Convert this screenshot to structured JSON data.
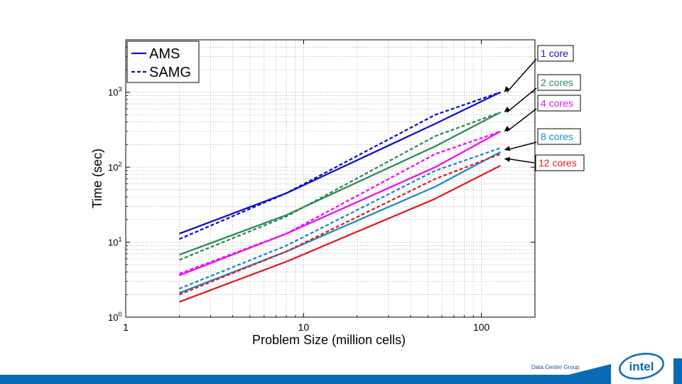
{
  "chart_data": {
    "type": "line",
    "x_scale": "log",
    "y_scale": "log",
    "xlim": [
      1,
      200
    ],
    "ylim": [
      1,
      5000
    ],
    "xlabel": "Problem Size (million cells)",
    "ylabel": "Time (sec)",
    "x_ticks": [
      1,
      10,
      100
    ],
    "x_tick_labels": [
      "1",
      "10",
      "100"
    ],
    "y_ticks": [
      1,
      10,
      100,
      1000
    ],
    "y_tick_labels": [
      {
        "base": "10",
        "exp": "0"
      },
      {
        "base": "10",
        "exp": "1"
      },
      {
        "base": "10",
        "exp": "2"
      },
      {
        "base": "10",
        "exp": "3"
      }
    ],
    "grid": true,
    "legend": {
      "position": "top-left",
      "entries": [
        {
          "label": "AMS",
          "style": "solid"
        },
        {
          "label": "SAMG",
          "style": "dashed"
        }
      ]
    },
    "series": [
      {
        "name": "AMS 1 core",
        "method": "AMS",
        "cores": "1 core",
        "color": "#1010cc",
        "style": "solid",
        "x": [
          2,
          8,
          55,
          128
        ],
        "y": [
          13,
          45,
          380,
          1000
        ]
      },
      {
        "name": "SAMG 1 core",
        "method": "SAMG",
        "cores": "1 core",
        "color": "#1010cc",
        "style": "dashed",
        "x": [
          2,
          8,
          55,
          128
        ],
        "y": [
          11,
          45,
          500,
          1000
        ]
      },
      {
        "name": "AMS 2 cores",
        "method": "AMS",
        "cores": "2 cores",
        "color": "#2e8b57",
        "style": "solid",
        "x": [
          2,
          8,
          55,
          128
        ],
        "y": [
          6.8,
          23,
          190,
          540
        ]
      },
      {
        "name": "SAMG 2 cores",
        "method": "SAMG",
        "cores": "2 cores",
        "color": "#2e8b57",
        "style": "dashed",
        "x": [
          2,
          8,
          55,
          128
        ],
        "y": [
          5.8,
          22,
          260,
          540
        ]
      },
      {
        "name": "AMS 4 cores",
        "method": "AMS",
        "cores": "4 cores",
        "color": "#ee10ee",
        "style": "solid",
        "x": [
          2,
          8,
          55,
          128
        ],
        "y": [
          3.6,
          13,
          100,
          300
        ]
      },
      {
        "name": "SAMG 4 cores",
        "method": "SAMG",
        "cores": "4 cores",
        "color": "#ee10ee",
        "style": "dashed",
        "x": [
          2,
          8,
          55,
          128
        ],
        "y": [
          3.8,
          13,
          150,
          300
        ]
      },
      {
        "name": "AMS 8 cores",
        "method": "AMS",
        "cores": "8 cores",
        "color": "#1e88c4",
        "style": "solid",
        "x": [
          2,
          8,
          55,
          128
        ],
        "y": [
          2.1,
          7.5,
          55,
          160
        ]
      },
      {
        "name": "SAMG 8 cores",
        "method": "SAMG",
        "cores": "8 cores",
        "color": "#1e88c4",
        "style": "dashed",
        "x": [
          2,
          8,
          55,
          128
        ],
        "y": [
          2.4,
          9,
          90,
          180
        ]
      },
      {
        "name": "AMS 12 cores",
        "method": "AMS",
        "cores": "12 cores",
        "color": "#e02020",
        "style": "solid",
        "x": [
          2,
          8,
          55,
          128
        ],
        "y": [
          1.6,
          5.5,
          38,
          105
        ]
      },
      {
        "name": "SAMG 12 cores",
        "method": "SAMG",
        "cores": "12 cores",
        "color": "#e02020",
        "style": "dashed",
        "x": [
          2,
          8,
          55,
          128
        ],
        "y": [
          2.0,
          7.5,
          70,
          150
        ]
      }
    ],
    "annotations": [
      {
        "text": "1 core",
        "color": "#1010cc",
        "points_to": {
          "x": 128,
          "y": 1000
        }
      },
      {
        "text": "2 cores",
        "color": "#2e8b57",
        "points_to": {
          "x": 128,
          "y": 540
        }
      },
      {
        "text": "4 cores",
        "color": "#ee10ee",
        "points_to": {
          "x": 128,
          "y": 300
        }
      },
      {
        "text": "8 cores",
        "color": "#1e88c4",
        "points_to": {
          "x": 128,
          "y": 170
        }
      },
      {
        "text": "12 cores",
        "color": "#e02020",
        "points_to": {
          "x": 128,
          "y": 130
        }
      }
    ]
  },
  "footer": {
    "group_label": "Data Center Group",
    "logo_text": "intel"
  },
  "colors": {
    "footer_blue": "#0a6ab5",
    "logo_blue": "#0a6ab5"
  }
}
